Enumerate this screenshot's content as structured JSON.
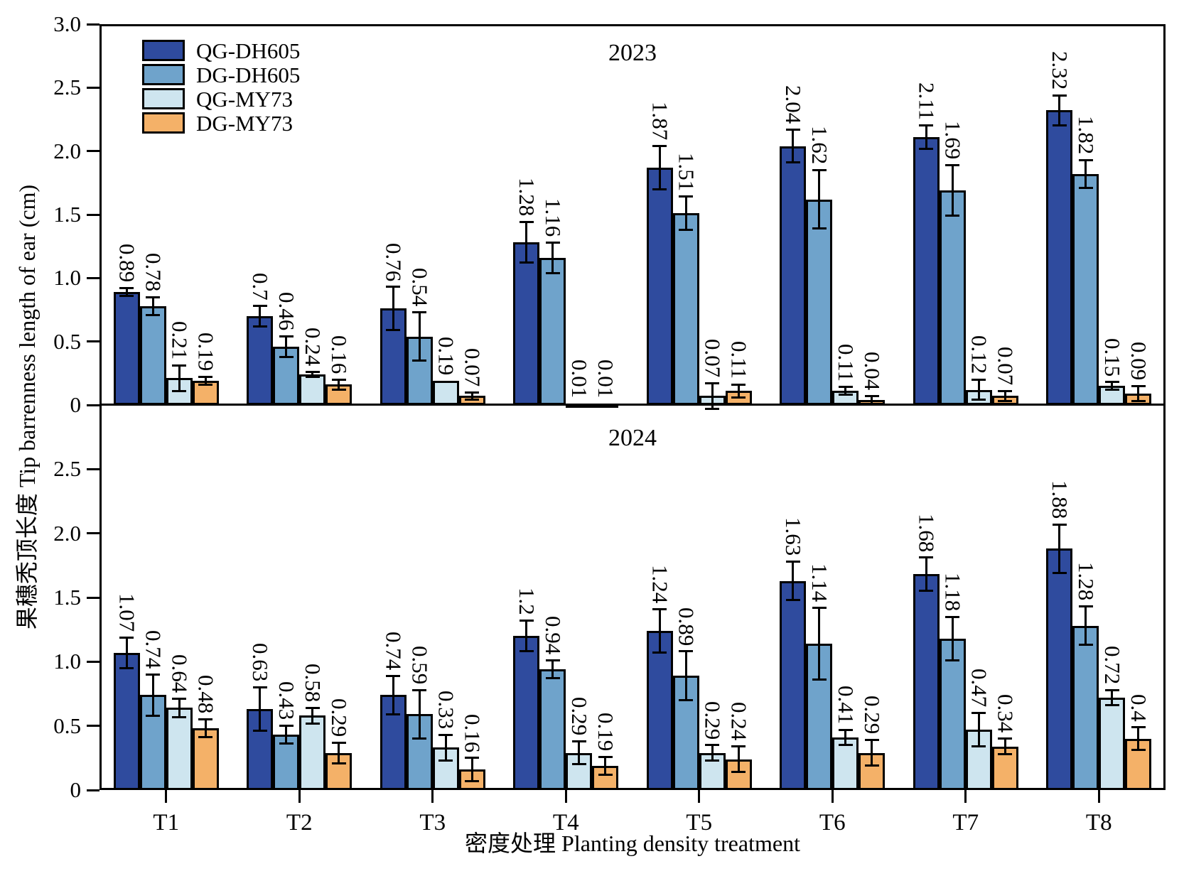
{
  "chart_data": {
    "type": "bar",
    "title": "",
    "xlabel": "密度处理 Planting density treatment",
    "ylabel": "果穗秃顶长度 Tip barrenness length of ear (cm)",
    "categories": [
      "T1",
      "T2",
      "T3",
      "T4",
      "T5",
      "T6",
      "T7",
      "T8"
    ],
    "series_colors": [
      "#2F4B9E",
      "#6FA3CB",
      "#CEE5EF",
      "#F4B168"
    ],
    "legend": [
      {
        "label": "QG-DH605",
        "color": "#2F4B9E"
      },
      {
        "label": "DG-DH605",
        "color": "#6FA3CB"
      },
      {
        "label": "QG-MY73",
        "color": "#CEE5EF"
      },
      {
        "label": "DG-MY73",
        "color": "#F4B168"
      }
    ],
    "grid": false,
    "legend_position": "top-left-inside",
    "panels": [
      {
        "year_label": "2023",
        "ylim": [
          0,
          3.0
        ],
        "yticks": [
          {
            "v": 0,
            "label": "0"
          },
          {
            "v": 0.5,
            "label": "0.5"
          },
          {
            "v": 1.0,
            "label": "1.0"
          },
          {
            "v": 1.5,
            "label": "1.5"
          },
          {
            "v": 2.0,
            "label": "2.0"
          },
          {
            "v": 2.5,
            "label": "2.5"
          },
          {
            "v": 3.0,
            "label": "3.0"
          }
        ],
        "series": [
          {
            "name": "QG-DH605",
            "values": [
              0.89,
              0.7,
              0.76,
              1.28,
              1.87,
              2.04,
              2.11,
              2.32
            ],
            "labels": [
              "0.89",
              "0.7",
              "0.76",
              "1.28",
              "1.87",
              "2.04",
              "2.11",
              "2.32"
            ],
            "errors": [
              0.03,
              0.08,
              0.17,
              0.16,
              0.17,
              0.13,
              0.09,
              0.12
            ]
          },
          {
            "name": "DG-DH605",
            "values": [
              0.78,
              0.46,
              0.54,
              1.16,
              1.51,
              1.62,
              1.69,
              1.82
            ],
            "labels": [
              "0.78",
              "0.46",
              "0.54",
              "1.16",
              "1.51",
              "1.62",
              "1.69",
              "1.82"
            ],
            "errors": [
              0.07,
              0.08,
              0.19,
              0.12,
              0.13,
              0.23,
              0.2,
              0.11
            ]
          },
          {
            "name": "QG-MY73",
            "values": [
              0.21,
              0.24,
              0.19,
              0.01,
              0.07,
              0.11,
              0.12,
              0.15
            ],
            "labels": [
              "0.21",
              "0.24",
              "0.19",
              "0.01",
              "0.07",
              "0.11",
              "0.12",
              "0.15"
            ],
            "errors": [
              0.1,
              0.02,
              0,
              0,
              0.1,
              0.03,
              0.08,
              0.03
            ]
          },
          {
            "name": "DG-MY73",
            "values": [
              0.19,
              0.16,
              0.07,
              0.01,
              0.11,
              0.04,
              0.07,
              0.09
            ],
            "labels": [
              "0.19",
              "0.16",
              "0.07",
              "0.01",
              "0.11",
              "0.04",
              "0.07",
              "0.09"
            ],
            "errors": [
              0.03,
              0.04,
              0.03,
              0,
              0.05,
              0.03,
              0.04,
              0.06
            ]
          }
        ]
      },
      {
        "year_label": "2024",
        "ylim": [
          0,
          3.0
        ],
        "yticks": [
          {
            "v": 0,
            "label": "0"
          },
          {
            "v": 0.5,
            "label": "0.5"
          },
          {
            "v": 1.0,
            "label": "1.0"
          },
          {
            "v": 1.5,
            "label": "1.5"
          },
          {
            "v": 2.0,
            "label": "2.0"
          },
          {
            "v": 2.5,
            "label": "2.5"
          }
        ],
        "series": [
          {
            "name": "QG-DH605",
            "values": [
              1.07,
              0.63,
              0.74,
              1.2,
              1.24,
              1.63,
              1.68,
              1.88
            ],
            "labels": [
              "1.07",
              "0.63",
              "0.74",
              "1.2",
              "1.24",
              "1.63",
              "1.68",
              "1.88"
            ],
            "errors": [
              0.12,
              0.17,
              0.15,
              0.12,
              0.17,
              0.15,
              0.13,
              0.19
            ]
          },
          {
            "name": "DG-DH605",
            "values": [
              0.74,
              0.43,
              0.59,
              0.94,
              0.89,
              1.14,
              1.18,
              1.28
            ],
            "labels": [
              "0.74",
              "0.43",
              "0.59",
              "0.94",
              "0.89",
              "1.14",
              "1.18",
              "1.28"
            ],
            "errors": [
              0.16,
              0.07,
              0.19,
              0.07,
              0.19,
              0.28,
              0.17,
              0.15
            ]
          },
          {
            "name": "QG-MY73",
            "values": [
              0.64,
              0.58,
              0.33,
              0.29,
              0.29,
              0.41,
              0.47,
              0.72
            ],
            "labels": [
              "0.64",
              "0.58",
              "0.33",
              "0.29",
              "0.29",
              "0.41",
              "0.47",
              "0.72"
            ],
            "errors": [
              0.07,
              0.06,
              0.1,
              0.09,
              0.06,
              0.06,
              0.13,
              0.06
            ]
          },
          {
            "name": "DG-MY73",
            "values": [
              0.48,
              0.29,
              0.16,
              0.19,
              0.24,
              0.29,
              0.34,
              0.4
            ],
            "labels": [
              "0.48",
              "0.29",
              "0.16",
              "0.19",
              "0.24",
              "0.29",
              "0.34",
              "0.4"
            ],
            "errors": [
              0.07,
              0.08,
              0.09,
              0.07,
              0.1,
              0.1,
              0.06,
              0.09
            ]
          }
        ]
      }
    ]
  }
}
